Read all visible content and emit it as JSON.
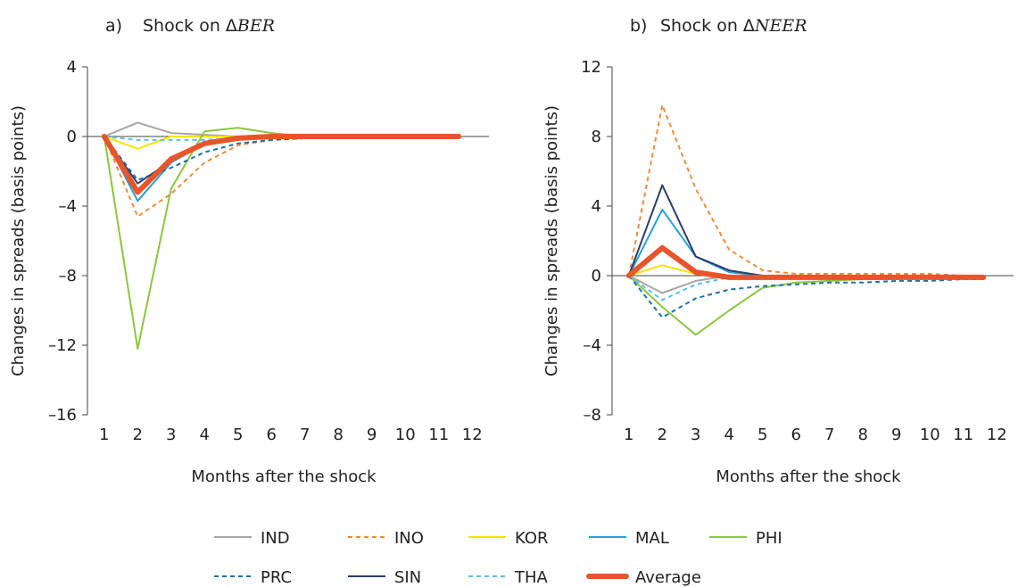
{
  "colors": {
    "IND": "#a6a6a6",
    "INO": "#f08c3c",
    "KOR": "#f2e600",
    "MAL": "#2a9fd6",
    "PHI": "#8cc63f",
    "PRC": "#1a73a8",
    "SIN": "#2c3e6b",
    "THA": "#5bc0eb",
    "Average": "#e8552b"
  },
  "legend": [
    {
      "key": "IND",
      "label": "IND",
      "style": "solid"
    },
    {
      "key": "INO",
      "label": "INO",
      "style": "dashed"
    },
    {
      "key": "KOR",
      "label": "KOR",
      "style": "solid"
    },
    {
      "key": "MAL",
      "label": "MAL",
      "style": "solid"
    },
    {
      "key": "PHI",
      "label": "PHI",
      "style": "solid"
    },
    {
      "key": "PRC",
      "label": "PRC",
      "style": "dashed"
    },
    {
      "key": "SIN",
      "label": "SIN",
      "style": "solid"
    },
    {
      "key": "THA",
      "label": "THA",
      "style": "dashed"
    },
    {
      "key": "Average",
      "label": "Average",
      "style": "thick"
    }
  ],
  "chart_data": [
    {
      "type": "line",
      "panel_tag": "a)",
      "title_prefix": "Shock on Δ",
      "title_var": "BER",
      "xlabel": "Months after the shock",
      "ylabel": "Changes in spreads (basis points)",
      "x": [
        1,
        2,
        3,
        4,
        5,
        6,
        7,
        8,
        9,
        10,
        11,
        12
      ],
      "xlim": [
        0.5,
        12.5
      ],
      "ylim": [
        -16,
        4
      ],
      "yticks": [
        4,
        0,
        -4,
        -8,
        -12,
        -16
      ],
      "ytick_labels": [
        "4",
        "0",
        "–4",
        "–8",
        "–12",
        "–16"
      ],
      "series": [
        {
          "name": "IND",
          "style": "solid",
          "values": [
            0,
            0.8,
            0.2,
            0.1,
            0,
            0,
            0,
            0,
            0,
            0,
            0,
            0
          ]
        },
        {
          "name": "INO",
          "style": "dashed",
          "values": [
            0,
            -4.6,
            -3.3,
            -1.5,
            -0.5,
            -0.2,
            -0.1,
            0,
            0,
            0,
            0,
            0
          ]
        },
        {
          "name": "KOR",
          "style": "solid",
          "values": [
            0,
            -0.7,
            0,
            0,
            0,
            0,
            0,
            0,
            0,
            0,
            0,
            0
          ]
        },
        {
          "name": "MAL",
          "style": "solid",
          "values": [
            0,
            -3.7,
            -1.5,
            -0.4,
            -0.1,
            0,
            0,
            0,
            0,
            0,
            0,
            0
          ]
        },
        {
          "name": "PHI",
          "style": "solid",
          "values": [
            0,
            -12.2,
            -3.0,
            0.3,
            0.5,
            0.2,
            0,
            0,
            0,
            0,
            0,
            0
          ]
        },
        {
          "name": "PRC",
          "style": "dashed",
          "values": [
            0,
            -2.5,
            -1.8,
            -0.9,
            -0.4,
            -0.2,
            -0.1,
            0,
            0,
            0,
            0,
            0
          ]
        },
        {
          "name": "SIN",
          "style": "solid",
          "values": [
            0,
            -2.7,
            -1.4,
            -0.4,
            -0.1,
            0,
            0,
            0,
            0,
            0,
            0,
            0
          ]
        },
        {
          "name": "THA",
          "style": "dashed",
          "values": [
            0,
            -0.2,
            -0.2,
            -0.2,
            -0.1,
            0,
            0,
            0,
            0,
            0,
            0,
            0
          ]
        },
        {
          "name": "Average",
          "style": "thick",
          "values": [
            0,
            -3.2,
            -1.3,
            -0.4,
            -0.1,
            0,
            0,
            0,
            0,
            0,
            0,
            0
          ]
        }
      ]
    },
    {
      "type": "line",
      "panel_tag": "b)",
      "title_prefix": "Shock on Δ",
      "title_var": "NEER",
      "xlabel": "Months after the shock",
      "ylabel": "Changes in spreads (basis points)",
      "x": [
        1,
        2,
        3,
        4,
        5,
        6,
        7,
        8,
        9,
        10,
        11,
        12
      ],
      "xlim": [
        0.5,
        12.5
      ],
      "ylim": [
        -8,
        12
      ],
      "yticks": [
        12,
        8,
        4,
        0,
        -4,
        -8
      ],
      "ytick_labels": [
        "12",
        "8",
        "4",
        "0",
        "–4",
        "–8"
      ],
      "series": [
        {
          "name": "IND",
          "style": "solid",
          "values": [
            0,
            -1.0,
            -0.3,
            0,
            0,
            0,
            0,
            0,
            0,
            0,
            0,
            0
          ]
        },
        {
          "name": "INO",
          "style": "dashed",
          "values": [
            0,
            9.8,
            5.0,
            1.5,
            0.3,
            0.1,
            0.1,
            0.1,
            0.1,
            0.1,
            0,
            0
          ]
        },
        {
          "name": "KOR",
          "style": "solid",
          "values": [
            0,
            0.6,
            0.1,
            0,
            0,
            0,
            0,
            0,
            0,
            0,
            0,
            0
          ]
        },
        {
          "name": "MAL",
          "style": "solid",
          "values": [
            0,
            3.8,
            1.1,
            0.2,
            0,
            0,
            0,
            0,
            0,
            0,
            0,
            0
          ]
        },
        {
          "name": "PHI",
          "style": "solid",
          "values": [
            0,
            -1.8,
            -3.4,
            -2.0,
            -0.7,
            -0.4,
            -0.3,
            -0.2,
            -0.2,
            -0.1,
            -0.1,
            -0.1
          ]
        },
        {
          "name": "PRC",
          "style": "dashed",
          "values": [
            0,
            -2.4,
            -1.3,
            -0.8,
            -0.6,
            -0.5,
            -0.4,
            -0.4,
            -0.3,
            -0.3,
            -0.2,
            -0.2
          ]
        },
        {
          "name": "SIN",
          "style": "solid",
          "values": [
            0,
            5.2,
            1.1,
            0.3,
            0,
            0,
            0,
            0,
            0,
            0,
            0,
            0
          ]
        },
        {
          "name": "THA",
          "style": "dashed",
          "values": [
            0,
            -1.4,
            -0.5,
            -0.1,
            0,
            0,
            0,
            0,
            0,
            0,
            0,
            0
          ]
        },
        {
          "name": "Average",
          "style": "thick",
          "values": [
            0,
            1.6,
            0.2,
            -0.1,
            -0.1,
            -0.1,
            -0.1,
            -0.1,
            -0.1,
            -0.1,
            -0.1,
            -0.1
          ]
        }
      ]
    }
  ]
}
